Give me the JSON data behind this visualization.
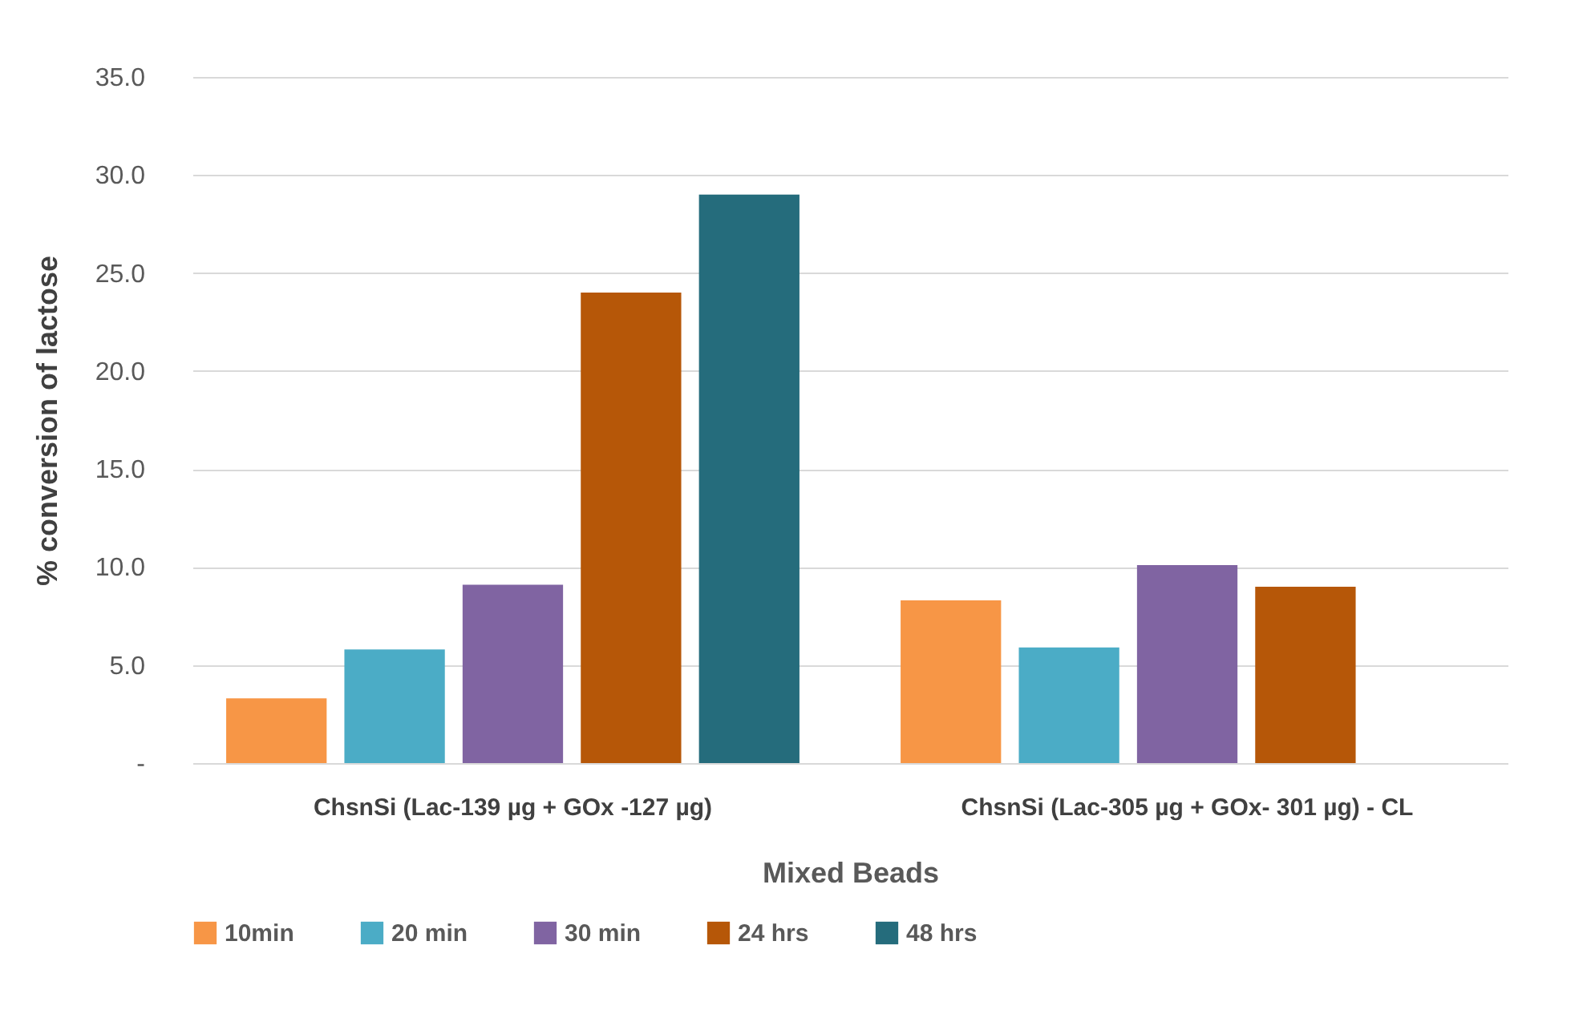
{
  "chart_data": {
    "type": "bar",
    "xlabel": "Mixed Beads",
    "ylabel": "% conversion of  lactose",
    "categories": [
      "ChsnSi (Lac-139 µg + GOx -127 µg)",
      "ChsnSi (Lac-305 µg + GOx- 301 µg) - CL"
    ],
    "series": [
      {
        "name": "10min",
        "color": "#f79646",
        "values": [
          3.3,
          8.3
        ]
      },
      {
        "name": "20 min",
        "color": "#4bacc6",
        "values": [
          5.8,
          5.9
        ]
      },
      {
        "name": "30 min",
        "color": "#8064a2",
        "values": [
          9.1,
          10.1
        ]
      },
      {
        "name": "24 hrs",
        "color": "#b65708",
        "values": [
          24.0,
          9.0
        ]
      },
      {
        "name": "48 hrs",
        "color": "#256c7c",
        "values": [
          29.0,
          null
        ]
      }
    ],
    "ylim": [
      0,
      35
    ],
    "yticks": [
      {
        "value": 0,
        "label": "-"
      },
      {
        "value": 5,
        "label": "5.0"
      },
      {
        "value": 10,
        "label": "10.0"
      },
      {
        "value": 15,
        "label": "15.0"
      },
      {
        "value": 20,
        "label": "20.0"
      },
      {
        "value": 25,
        "label": "25.0"
      },
      {
        "value": 30,
        "label": "30.0"
      },
      {
        "value": 35,
        "label": "35.0"
      }
    ],
    "grid": "y",
    "legend": "bottom"
  }
}
